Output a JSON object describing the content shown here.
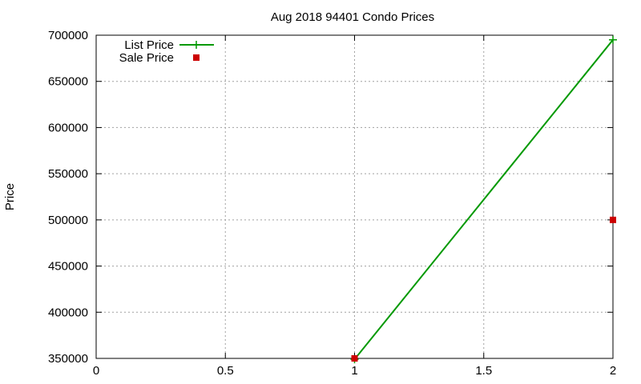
{
  "chart_data": {
    "type": "line",
    "title": "Aug 2018 94401 Condo Prices",
    "xlabel": "",
    "ylabel": "Price",
    "xlim": [
      0,
      2
    ],
    "ylim": [
      350000,
      700000
    ],
    "x_ticks": [
      0,
      0.5,
      1,
      1.5,
      2
    ],
    "x_tick_labels": [
      "0",
      "0.5",
      "1",
      "1.5",
      "2"
    ],
    "y_ticks": [
      350000,
      400000,
      450000,
      500000,
      550000,
      600000,
      650000,
      700000
    ],
    "y_tick_labels": [
      "350000",
      "400000",
      "450000",
      "500000",
      "550000",
      "600000",
      "650000",
      "700000"
    ],
    "grid": true,
    "legend_position": "top-left",
    "series": [
      {
        "name": "List Price",
        "style": "line+points",
        "marker": "plus",
        "color": "#009900",
        "points": [
          {
            "x": 1,
            "y": 349000
          },
          {
            "x": 2,
            "y": 695000
          }
        ]
      },
      {
        "name": "Sale Price",
        "style": "points",
        "marker": "square",
        "color": "#cc0000",
        "points": [
          {
            "x": 1,
            "y": 350000
          },
          {
            "x": 2,
            "y": 500000
          }
        ]
      }
    ]
  }
}
